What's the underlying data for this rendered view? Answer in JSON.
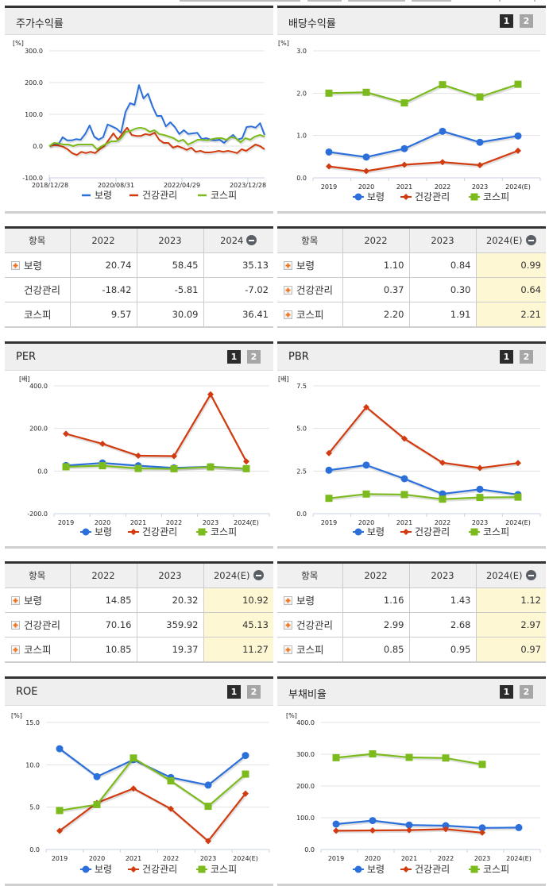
{
  "colors": {
    "boryung": "#2b6fdb",
    "health": "#d13b0f",
    "kospi": "#7cbb1e"
  },
  "legend": [
    "보령",
    "건강관리",
    "코스피"
  ],
  "pager": [
    "1",
    "2"
  ],
  "panels": {
    "stock_return": {
      "title": "주가수익률",
      "unit": "[%]"
    },
    "dividend": {
      "title": "배당수익률",
      "unit": "[%]"
    },
    "per": {
      "title": "PER",
      "unit": "[배]"
    },
    "pbr": {
      "title": "PBR",
      "unit": "[배]"
    },
    "roe": {
      "title": "ROE",
      "unit": "[%]"
    },
    "debt": {
      "title": "부채비율",
      "unit": "[%]"
    }
  },
  "tables": {
    "stock_return": {
      "headers": [
        "항목",
        "2022",
        "2023",
        "2024"
      ],
      "rows": [
        {
          "name": "보령",
          "expand": true,
          "values": [
            "20.74",
            "58.45",
            "35.13"
          ]
        },
        {
          "name": "건강관리",
          "expand": false,
          "values": [
            "-18.42",
            "-5.81",
            "-7.02"
          ]
        },
        {
          "name": "코스피",
          "expand": false,
          "values": [
            "9.57",
            "30.09",
            "36.41"
          ]
        }
      ]
    },
    "dividend": {
      "headers": [
        "항목",
        "2022",
        "2023",
        "2024(E)"
      ],
      "rows": [
        {
          "name": "보령",
          "expand": true,
          "values": [
            "1.10",
            "0.84",
            "0.99"
          ]
        },
        {
          "name": "건강관리",
          "expand": true,
          "values": [
            "0.37",
            "0.30",
            "0.64"
          ]
        },
        {
          "name": "코스피",
          "expand": true,
          "values": [
            "2.20",
            "1.91",
            "2.21"
          ]
        }
      ]
    },
    "per": {
      "headers": [
        "항목",
        "2022",
        "2023",
        "2024(E)"
      ],
      "rows": [
        {
          "name": "보령",
          "expand": true,
          "values": [
            "14.85",
            "20.32",
            "10.92"
          ]
        },
        {
          "name": "건강관리",
          "expand": true,
          "values": [
            "70.16",
            "359.92",
            "45.13"
          ]
        },
        {
          "name": "코스피",
          "expand": true,
          "values": [
            "10.85",
            "19.37",
            "11.27"
          ]
        }
      ]
    },
    "pbr": {
      "headers": [
        "항목",
        "2022",
        "2023",
        "2024(E)"
      ],
      "rows": [
        {
          "name": "보령",
          "expand": true,
          "values": [
            "1.16",
            "1.43",
            "1.12"
          ]
        },
        {
          "name": "건강관리",
          "expand": true,
          "values": [
            "2.99",
            "2.68",
            "2.97"
          ]
        },
        {
          "name": "코스피",
          "expand": true,
          "values": [
            "0.85",
            "0.95",
            "0.97"
          ]
        }
      ]
    }
  },
  "chart_data": [
    {
      "type": "line",
      "title": "주가수익률",
      "ylabel": "[%]",
      "ylim": [
        -100,
        300
      ],
      "yticks": [
        "300.0",
        "200.0",
        "100.0",
        "0.0",
        "-100.0"
      ],
      "xticks": [
        "2018/12/28",
        "2020/08/31",
        "2022/04/29",
        "2023/12/28"
      ],
      "legend": [
        "보령",
        "건강관리",
        "코스피"
      ],
      "grid": true,
      "series": [
        {
          "name": "보령",
          "values": [
            0,
            5,
            5,
            28,
            18,
            18,
            22,
            20,
            38,
            65,
            30,
            20,
            28,
            68,
            62,
            55,
            42,
            108,
            135,
            130,
            192,
            150,
            165,
            125,
            95,
            95,
            62,
            75,
            60,
            38,
            50,
            38,
            40,
            42,
            22,
            25,
            20,
            18,
            20,
            10,
            25,
            35,
            20,
            25,
            60,
            62,
            58,
            72,
            35
          ]
        },
        {
          "name": "건강관리",
          "values": [
            0,
            3,
            2,
            -2,
            -10,
            -22,
            -28,
            -18,
            -22,
            -18,
            -22,
            -10,
            0,
            20,
            40,
            20,
            40,
            58,
            35,
            32,
            32,
            38,
            35,
            42,
            20,
            10,
            10,
            -5,
            0,
            -5,
            -12,
            -5,
            -18,
            -15,
            -20,
            -20,
            -18,
            -15,
            -18,
            -15,
            -18,
            -22,
            -10,
            -15,
            -5,
            5,
            0,
            -10
          ]
        },
        {
          "name": "코스피",
          "values": [
            0,
            10,
            8,
            5,
            5,
            0,
            5,
            5,
            5,
            5,
            -10,
            0,
            8,
            15,
            15,
            25,
            45,
            48,
            55,
            58,
            55,
            45,
            50,
            38,
            35,
            30,
            25,
            15,
            20,
            5,
            12,
            20,
            20,
            18,
            22,
            25,
            25,
            20,
            28,
            25,
            12,
            25,
            20,
            30,
            35,
            30
          ]
        }
      ]
    },
    {
      "type": "line",
      "title": "배당수익률",
      "ylabel": "[%]",
      "ylim": [
        0,
        3
      ],
      "yticks": [
        "3.0",
        "2.0",
        "1.0",
        "0.0"
      ],
      "categories": [
        "2019",
        "2020",
        "2021",
        "2022",
        "2023",
        "2024(E)"
      ],
      "series": [
        {
          "name": "보령",
          "values": [
            0.61,
            0.49,
            0.69,
            1.1,
            0.84,
            0.99
          ]
        },
        {
          "name": "건강관리",
          "values": [
            0.27,
            0.16,
            0.31,
            0.37,
            0.3,
            0.64
          ]
        },
        {
          "name": "코스피",
          "values": [
            2.0,
            2.02,
            1.77,
            2.2,
            1.91,
            2.21
          ]
        }
      ]
    },
    {
      "type": "line",
      "title": "PER",
      "ylabel": "[배]",
      "ylim": [
        -200,
        400
      ],
      "yticks": [
        "400.0",
        "200.0",
        "0.0",
        "-200.0"
      ],
      "categories": [
        "2019",
        "2020",
        "2021",
        "2022",
        "2023",
        "2024(E)"
      ],
      "series": [
        {
          "name": "보령",
          "values": [
            26,
            38,
            25,
            14.85,
            20.32,
            10.92
          ]
        },
        {
          "name": "건강관리",
          "values": [
            175,
            128,
            72,
            70.16,
            359.92,
            45.13
          ]
        },
        {
          "name": "코스피",
          "values": [
            20,
            25,
            12,
            10.85,
            19.37,
            11.27
          ]
        }
      ]
    },
    {
      "type": "line",
      "title": "PBR",
      "ylabel": "[배]",
      "ylim": [
        0,
        7.5
      ],
      "yticks": [
        "7.5",
        "5.0",
        "2.5",
        "0.0"
      ],
      "categories": [
        "2019",
        "2020",
        "2021",
        "2022",
        "2023",
        "2024(E)"
      ],
      "series": [
        {
          "name": "보령",
          "values": [
            2.55,
            2.85,
            2.05,
            1.16,
            1.43,
            1.12
          ]
        },
        {
          "name": "건강관리",
          "values": [
            3.55,
            6.25,
            4.4,
            2.99,
            2.68,
            2.97
          ]
        },
        {
          "name": "코스피",
          "values": [
            0.9,
            1.15,
            1.12,
            0.85,
            0.95,
            0.97
          ]
        }
      ]
    },
    {
      "type": "line",
      "title": "ROE",
      "ylabel": "[%]",
      "ylim": [
        0,
        15
      ],
      "yticks": [
        "15.0",
        "10.0",
        "5.0",
        "0.0"
      ],
      "categories": [
        "2019",
        "2020",
        "2021",
        "2022",
        "2023",
        "2024(E)"
      ],
      "series": [
        {
          "name": "보령",
          "values": [
            11.9,
            8.6,
            10.6,
            8.5,
            7.6,
            11.1
          ]
        },
        {
          "name": "건강관리",
          "values": [
            2.2,
            5.5,
            7.2,
            4.8,
            1.0,
            6.6
          ]
        },
        {
          "name": "코스피",
          "values": [
            4.6,
            5.3,
            10.8,
            8.1,
            5.1,
            8.9
          ]
        }
      ]
    },
    {
      "type": "line",
      "title": "부채비율",
      "ylabel": "[%]",
      "ylim": [
        0,
        400
      ],
      "yticks": [
        "400.0",
        "300.0",
        "200.0",
        "100.0",
        "0.0"
      ],
      "categories": [
        "2019",
        "2020",
        "2021",
        "2022",
        "2023",
        "2024(E)"
      ],
      "series": [
        {
          "name": "보령",
          "values": [
            80,
            91,
            77,
            75,
            68,
            69
          ]
        },
        {
          "name": "건강관리",
          "values": [
            59,
            60,
            61,
            64,
            53,
            null
          ]
        },
        {
          "name": "코스피",
          "values": [
            289,
            301,
            290,
            288,
            268,
            null
          ]
        }
      ]
    }
  ]
}
